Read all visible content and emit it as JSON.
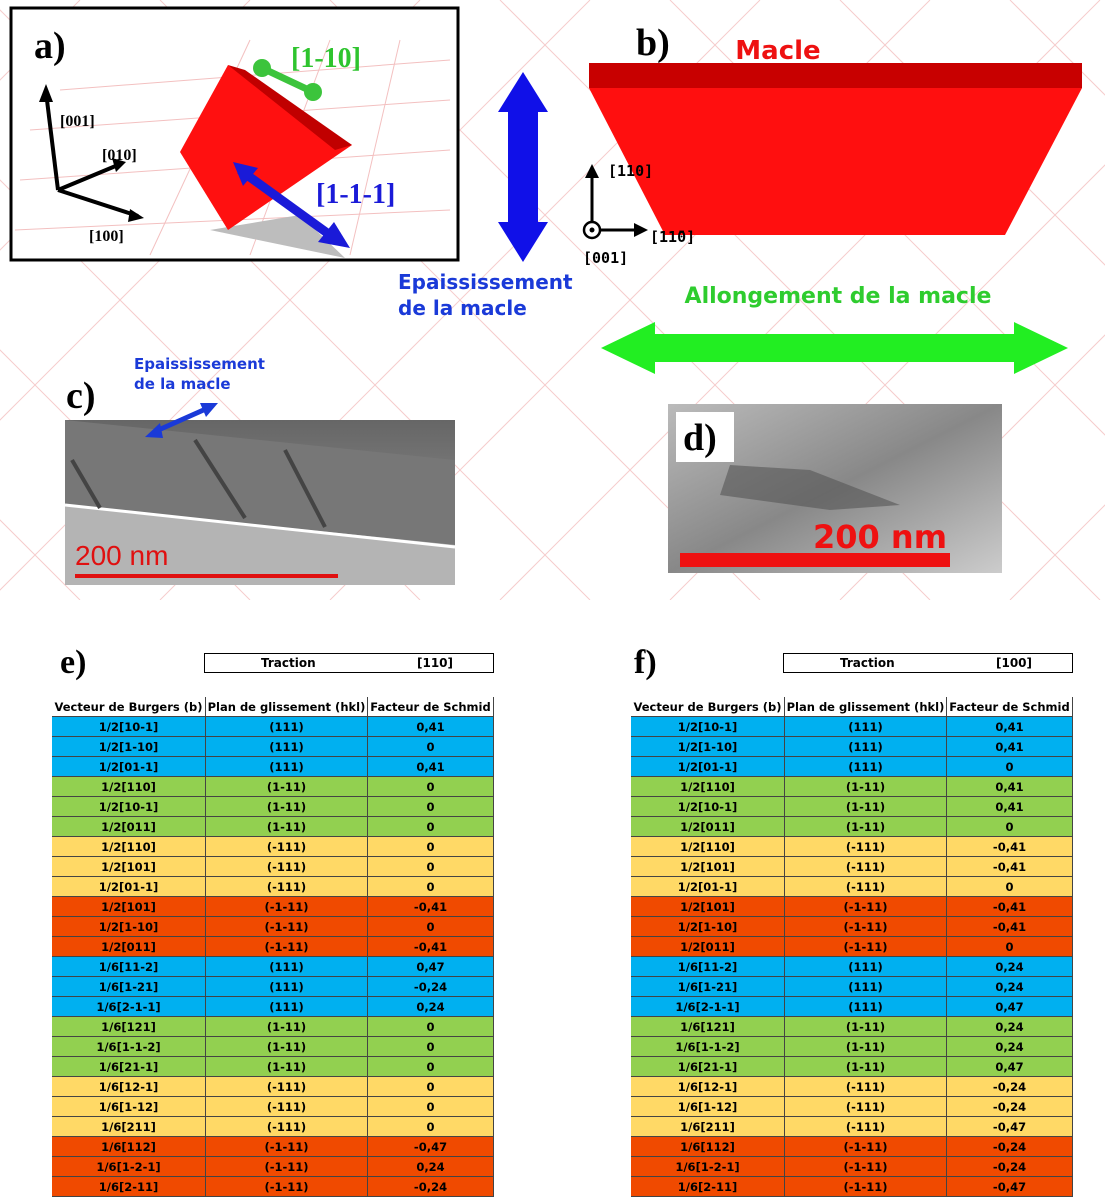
{
  "panel_a": {
    "label": "a)",
    "axes": [
      "[001]",
      "[010]",
      "[100]"
    ],
    "vectors": [
      "[1-10]",
      "[1-1-1]"
    ]
  },
  "panel_b": {
    "label": "b)",
    "title": "Macle",
    "directions": [
      "[110]",
      "[11̄0]",
      "[001]"
    ]
  },
  "thickening": {
    "lines": [
      "Epaississement",
      "de la macle"
    ]
  },
  "elongation": {
    "text": "Allongement de la macle"
  },
  "panel_c": {
    "label": "c)",
    "annotation": [
      "Epaississement",
      "de la macle"
    ],
    "scale_bar": "200 nm"
  },
  "panel_d": {
    "label": "d)",
    "scale_bar": "200 nm"
  },
  "table_e": {
    "label": "e)",
    "loading": [
      "Traction",
      "[110]"
    ],
    "columns": [
      "Vecteur de Burgers (b)",
      "Plan de glissement (hkl)",
      "Facteur de Schmid"
    ],
    "rows": [
      [
        "1/2[10-1]",
        "(111)",
        "0,41"
      ],
      [
        "1/2[1-10]",
        "(111)",
        "0"
      ],
      [
        "1/2[01-1]",
        "(111)",
        "0,41"
      ],
      [
        "1/2[110]",
        "(1-11)",
        "0"
      ],
      [
        "1/2[10-1]",
        "(1-11)",
        "0"
      ],
      [
        "1/2[011]",
        "(1-11)",
        "0"
      ],
      [
        "1/2[110]",
        "(-111)",
        "0"
      ],
      [
        "1/2[101]",
        "(-111)",
        "0"
      ],
      [
        "1/2[01-1]",
        "(-111)",
        "0"
      ],
      [
        "1/2[101]",
        "(-1-11)",
        "-0,41"
      ],
      [
        "1/2[1-10]",
        "(-1-11)",
        "0"
      ],
      [
        "1/2[011]",
        "(-1-11)",
        "-0,41"
      ],
      [
        "1/6[11-2]",
        "(111)",
        "0,47"
      ],
      [
        "1/6[1-21]",
        "(111)",
        "-0,24"
      ],
      [
        "1/6[2-1-1]",
        "(111)",
        "0,24"
      ],
      [
        "1/6[121]",
        "(1-11)",
        "0"
      ],
      [
        "1/6[1-1-2]",
        "(1-11)",
        "0"
      ],
      [
        "1/6[21-1]",
        "(1-11)",
        "0"
      ],
      [
        "1/6[12-1]",
        "(-111)",
        "0"
      ],
      [
        "1/6[1-12]",
        "(-111)",
        "0"
      ],
      [
        "1/6[211]",
        "(-111)",
        "0"
      ],
      [
        "1/6[112]",
        "(-1-11)",
        "-0,47"
      ],
      [
        "1/6[1-2-1]",
        "(-1-11)",
        "0,24"
      ],
      [
        "1/6[2-11]",
        "(-1-11)",
        "-0,24"
      ]
    ]
  },
  "table_f": {
    "label": "f)",
    "loading": [
      "Traction",
      "[100]"
    ],
    "columns": [
      "Vecteur de Burgers (b)",
      "Plan de glissement (hkl)",
      "Facteur de Schmid"
    ],
    "rows": [
      [
        "1/2[10-1]",
        "(111)",
        "0,41"
      ],
      [
        "1/2[1-10]",
        "(111)",
        "0,41"
      ],
      [
        "1/2[01-1]",
        "(111)",
        "0"
      ],
      [
        "1/2[110]",
        "(1-11)",
        "0,41"
      ],
      [
        "1/2[10-1]",
        "(1-11)",
        "0,41"
      ],
      [
        "1/2[011]",
        "(1-11)",
        "0"
      ],
      [
        "1/2[110]",
        "(-111)",
        "-0,41"
      ],
      [
        "1/2[101]",
        "(-111)",
        "-0,41"
      ],
      [
        "1/2[01-1]",
        "(-111)",
        "0"
      ],
      [
        "1/2[101]",
        "(-1-11)",
        "-0,41"
      ],
      [
        "1/2[1-10]",
        "(-1-11)",
        "-0,41"
      ],
      [
        "1/2[011]",
        "(-1-11)",
        "0"
      ],
      [
        "1/6[11-2]",
        "(111)",
        "0,24"
      ],
      [
        "1/6[1-21]",
        "(111)",
        "0,24"
      ],
      [
        "1/6[2-1-1]",
        "(111)",
        "0,47"
      ],
      [
        "1/6[121]",
        "(1-11)",
        "0,24"
      ],
      [
        "1/6[1-1-2]",
        "(1-11)",
        "0,24"
      ],
      [
        "1/6[21-1]",
        "(1-11)",
        "0,47"
      ],
      [
        "1/6[12-1]",
        "(-111)",
        "-0,24"
      ],
      [
        "1/6[1-12]",
        "(-111)",
        "-0,24"
      ],
      [
        "1/6[211]",
        "(-111)",
        "-0,47"
      ],
      [
        "1/6[112]",
        "(-1-11)",
        "-0,24"
      ],
      [
        "1/6[1-2-1]",
        "(-1-11)",
        "-0,24"
      ],
      [
        "1/6[2-11]",
        "(-1-11)",
        "-0,47"
      ]
    ]
  }
}
